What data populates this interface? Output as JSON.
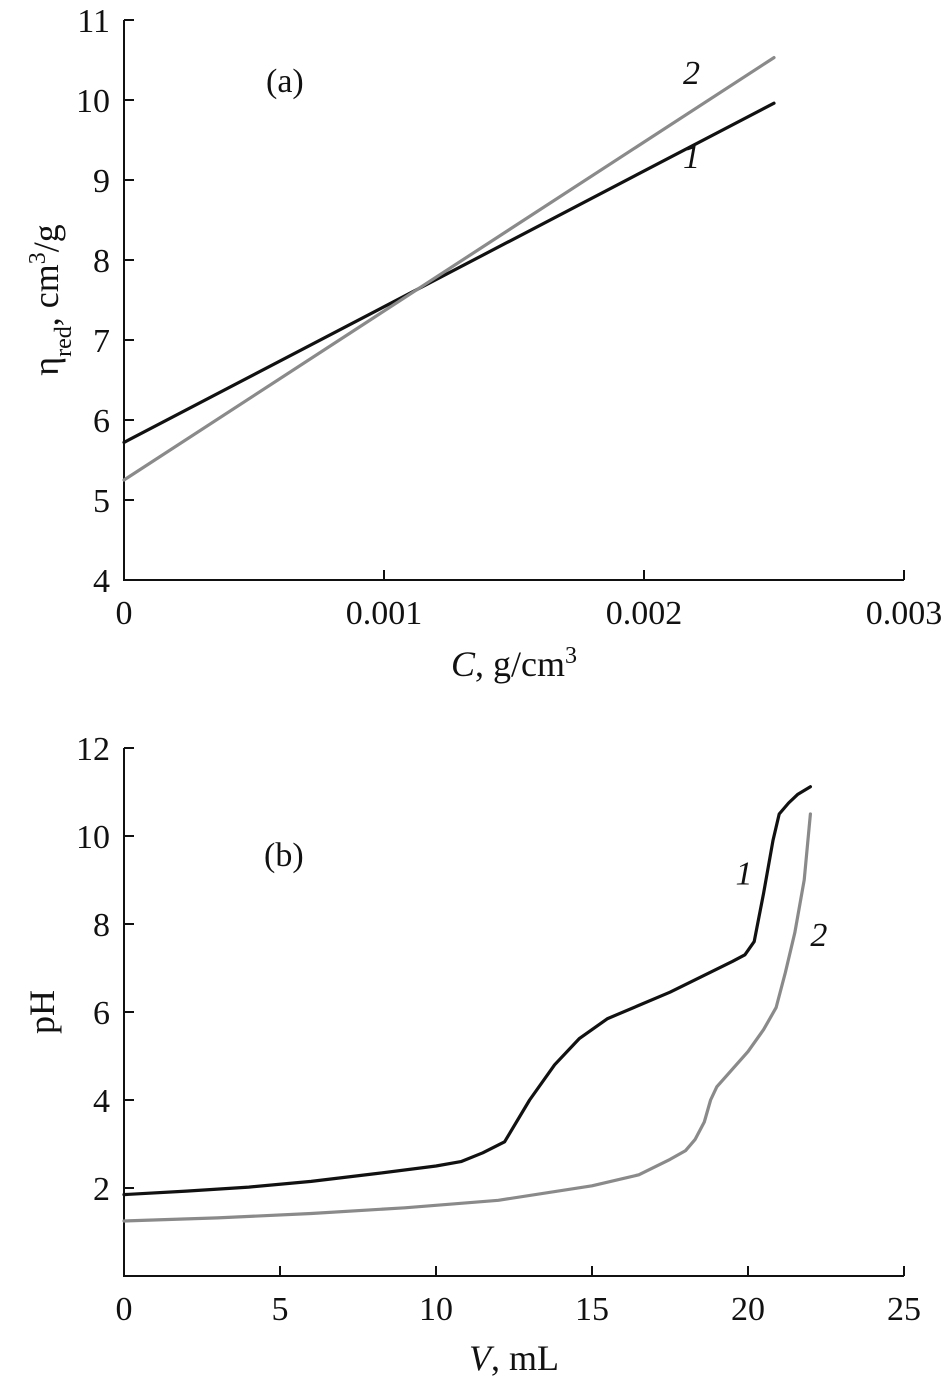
{
  "chart_data": [
    {
      "type": "line",
      "panel_label": "(a)",
      "xlabel_italic": "C",
      "xlabel_rest": ", g/cm",
      "xlabel_sup": "3",
      "ylabel_main": "η",
      "ylabel_sub": "red",
      "ylabel_mid": ", cm",
      "ylabel_sup": "3",
      "ylabel_end": "/g",
      "xlim": [
        0,
        0.003
      ],
      "ylim": [
        4,
        11
      ],
      "x_ticks": [
        0,
        0.001,
        0.002,
        0.003
      ],
      "x_tick_labels": [
        "0",
        "0.001",
        "0.002",
        "0.003"
      ],
      "y_ticks": [
        4,
        5,
        6,
        7,
        8,
        9,
        10,
        11
      ],
      "y_tick_labels": [
        "4",
        "5",
        "6",
        "7",
        "8",
        "9",
        "10",
        "11"
      ],
      "grid": false,
      "series": [
        {
          "name": "1",
          "color": "#111111",
          "label_pos": [
            0.00215,
            9.15
          ],
          "x": [
            0,
            0.0025
          ],
          "y": [
            5.72,
            9.96
          ]
        },
        {
          "name": "2",
          "color": "#8a8a8a",
          "label_pos": [
            0.00215,
            10.2
          ],
          "x": [
            0,
            0.0025
          ],
          "y": [
            5.25,
            10.53
          ]
        }
      ]
    },
    {
      "type": "line",
      "panel_label": "(b)",
      "xlabel_italic": "V",
      "xlabel_rest": ", mL",
      "ylabel": "pH",
      "xlim": [
        0,
        25
      ],
      "ylim": [
        0,
        12
      ],
      "x_ticks": [
        0,
        5,
        10,
        15,
        20,
        25
      ],
      "x_tick_labels": [
        "0",
        "5",
        "10",
        "15",
        "20",
        "25"
      ],
      "y_ticks": [
        2,
        4,
        6,
        8,
        10,
        12
      ],
      "y_tick_labels": [
        "2",
        "4",
        "6",
        "8",
        "10",
        "12"
      ],
      "grid": false,
      "series": [
        {
          "name": "1",
          "color": "#111111",
          "label_pos": [
            19.6,
            8.9
          ],
          "x": [
            0,
            2,
            4,
            6,
            8,
            10,
            10.8,
            11.5,
            12.2,
            13,
            13.8,
            14.6,
            15.5,
            16.5,
            17.5,
            18.5,
            19.5,
            19.9,
            20.2,
            20.5,
            20.8,
            21.0,
            21.3,
            21.6,
            22.0
          ],
          "y": [
            1.85,
            1.93,
            2.02,
            2.15,
            2.32,
            2.5,
            2.6,
            2.8,
            3.05,
            4.0,
            4.8,
            5.4,
            5.85,
            6.15,
            6.45,
            6.8,
            7.15,
            7.3,
            7.6,
            8.7,
            9.9,
            10.5,
            10.75,
            10.95,
            11.12
          ]
        },
        {
          "name": "2",
          "color": "#8a8a8a",
          "label_pos": [
            22.0,
            7.5
          ],
          "x": [
            0,
            3,
            6,
            9,
            12,
            15,
            16.5,
            17.5,
            18.0,
            18.3,
            18.6,
            18.8,
            19.0,
            19.5,
            20.0,
            20.5,
            20.9,
            21.2,
            21.5,
            21.8,
            22.0
          ],
          "y": [
            1.25,
            1.32,
            1.42,
            1.55,
            1.72,
            2.05,
            2.3,
            2.65,
            2.85,
            3.1,
            3.5,
            4.0,
            4.3,
            4.7,
            5.1,
            5.6,
            6.1,
            6.9,
            7.8,
            9.0,
            10.5
          ]
        }
      ]
    }
  ]
}
